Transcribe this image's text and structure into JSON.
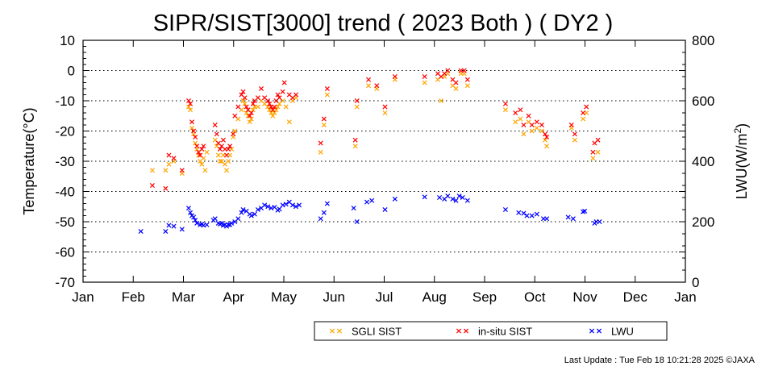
{
  "chart_data": {
    "type": "scatter",
    "title": "SIPR/SIST[3000] trend ( 2023 Both ) ( DY2 )",
    "ylabel": "Temperature(°C)",
    "y2label_main": "LWU(W/m",
    "y2label_sup": "2",
    "y2label_end": ")",
    "ylim": [
      -70,
      10
    ],
    "y2lim": [
      0,
      800
    ],
    "y_ticks": [
      "10",
      "0",
      "-10",
      "-20",
      "-30",
      "-40",
      "-50",
      "-60",
      "-70"
    ],
    "y2_ticks": [
      "800",
      "600",
      "400",
      "200",
      "0"
    ],
    "x_ticks": [
      "Jan",
      "Feb",
      "Mar",
      "Apr",
      "May",
      "Jun",
      "Jul",
      "Aug",
      "Sep",
      "Oct",
      "Nov",
      "Dec",
      "Jan"
    ],
    "grid": "horizontal dotted",
    "legend_position": "bottom-right",
    "series": [
      {
        "name": "SGLI SIST",
        "color": "#ffa500",
        "axis": "left",
        "marker": "x",
        "points": [
          [
            "2023-02-12",
            -33
          ],
          [
            "2023-02-20",
            -33
          ],
          [
            "2023-02-22",
            -31
          ],
          [
            "2023-02-25",
            -30
          ],
          [
            "2023-03-02",
            -34
          ],
          [
            "2023-03-06",
            -12
          ],
          [
            "2023-03-07",
            -13
          ],
          [
            "2023-03-08",
            -19
          ],
          [
            "2023-03-09",
            -21
          ],
          [
            "2023-03-10",
            -24
          ],
          [
            "2023-03-11",
            -26
          ],
          [
            "2023-03-12",
            -28
          ],
          [
            "2023-03-13",
            -30
          ],
          [
            "2023-03-14",
            -31
          ],
          [
            "2023-03-15",
            -29
          ],
          [
            "2023-03-16",
            -33
          ],
          [
            "2023-03-17",
            -27
          ],
          [
            "2023-03-22",
            -23
          ],
          [
            "2023-03-23",
            -25
          ],
          [
            "2023-03-24",
            -28
          ],
          [
            "2023-03-25",
            -30
          ],
          [
            "2023-03-26",
            -30
          ],
          [
            "2023-03-27",
            -28
          ],
          [
            "2023-03-28",
            -31
          ],
          [
            "2023-03-29",
            -33
          ],
          [
            "2023-03-30",
            -30
          ],
          [
            "2023-03-31",
            -28
          ],
          [
            "2023-04-01",
            -26
          ],
          [
            "2023-04-02",
            -22
          ],
          [
            "2023-04-03",
            -20
          ],
          [
            "2023-04-05",
            -16
          ],
          [
            "2023-04-07",
            -13
          ],
          [
            "2023-04-08",
            -10
          ],
          [
            "2023-04-09",
            -11
          ],
          [
            "2023-04-10",
            -14
          ],
          [
            "2023-04-11",
            -15
          ],
          [
            "2023-04-12",
            -17
          ],
          [
            "2023-04-13",
            -16
          ],
          [
            "2023-04-14",
            -13
          ],
          [
            "2023-04-15",
            -12
          ],
          [
            "2023-04-17",
            -12
          ],
          [
            "2023-04-19",
            -10
          ],
          [
            "2023-04-21",
            -11
          ],
          [
            "2023-04-23",
            -12
          ],
          [
            "2023-04-24",
            -13
          ],
          [
            "2023-04-25",
            -14
          ],
          [
            "2023-04-26",
            -15
          ],
          [
            "2023-04-27",
            -14
          ],
          [
            "2023-04-28",
            -13
          ],
          [
            "2023-04-29",
            -12
          ],
          [
            "2023-04-30",
            -11
          ],
          [
            "2023-05-02",
            -10
          ],
          [
            "2023-05-04",
            -12
          ],
          [
            "2023-05-06",
            -17
          ],
          [
            "2023-05-08",
            -10
          ],
          [
            "2023-05-10",
            -9
          ],
          [
            "2023-05-25",
            -27
          ],
          [
            "2023-05-27",
            -18
          ],
          [
            "2023-05-29",
            -8
          ],
          [
            "2023-06-15",
            -25
          ],
          [
            "2023-06-16",
            -12
          ],
          [
            "2023-06-23",
            -5
          ],
          [
            "2023-06-28",
            -6
          ],
          [
            "2023-07-03",
            -14
          ],
          [
            "2023-07-09",
            -3
          ],
          [
            "2023-07-27",
            -4
          ],
          [
            "2023-08-04",
            -3
          ],
          [
            "2023-08-06",
            -10
          ],
          [
            "2023-08-08",
            -2
          ],
          [
            "2023-08-10",
            -1
          ],
          [
            "2023-08-13",
            -5
          ],
          [
            "2023-08-15",
            -6
          ],
          [
            "2023-08-18",
            -1
          ],
          [
            "2023-08-20",
            -1
          ],
          [
            "2023-08-22",
            -5
          ],
          [
            "2023-09-14",
            -13
          ],
          [
            "2023-09-20",
            -17
          ],
          [
            "2023-09-23",
            -16
          ],
          [
            "2023-09-25",
            -21
          ],
          [
            "2023-09-28",
            -17
          ],
          [
            "2023-09-30",
            -20
          ],
          [
            "2023-10-03",
            -19
          ],
          [
            "2023-10-06",
            -20
          ],
          [
            "2023-10-08",
            -23
          ],
          [
            "2023-10-09",
            -25
          ],
          [
            "2023-10-24",
            -19
          ],
          [
            "2023-10-26",
            -23
          ],
          [
            "2023-10-31",
            -16
          ],
          [
            "2023-11-02",
            -14
          ],
          [
            "2023-11-06",
            -29
          ],
          [
            "2023-11-09",
            -27
          ]
        ]
      },
      {
        "name": "in-situ SIST",
        "color": "#ff0000",
        "axis": "left",
        "marker": "x",
        "points": [
          [
            "2023-02-12",
            -38
          ],
          [
            "2023-02-20",
            -39
          ],
          [
            "2023-02-22",
            -28
          ],
          [
            "2023-02-25",
            -29
          ],
          [
            "2023-03-02",
            -33
          ],
          [
            "2023-03-06",
            -10
          ],
          [
            "2023-03-07",
            -11
          ],
          [
            "2023-03-08",
            -17
          ],
          [
            "2023-03-09",
            -20
          ],
          [
            "2023-03-10",
            -22
          ],
          [
            "2023-03-11",
            -25
          ],
          [
            "2023-03-12",
            -27
          ],
          [
            "2023-03-13",
            -28
          ],
          [
            "2023-03-14",
            -26
          ],
          [
            "2023-03-15",
            -25
          ],
          [
            "2023-03-22",
            -18
          ],
          [
            "2023-03-23",
            -21
          ],
          [
            "2023-03-24",
            -24
          ],
          [
            "2023-03-25",
            -26
          ],
          [
            "2023-03-26",
            -25
          ],
          [
            "2023-03-27",
            -23
          ],
          [
            "2023-03-28",
            -26
          ],
          [
            "2023-03-29",
            -28
          ],
          [
            "2023-03-30",
            -26
          ],
          [
            "2023-03-31",
            -25
          ],
          [
            "2023-04-02",
            -21
          ],
          [
            "2023-04-03",
            -15
          ],
          [
            "2023-04-05",
            -12
          ],
          [
            "2023-04-07",
            -8
          ],
          [
            "2023-04-08",
            -7
          ],
          [
            "2023-04-09",
            -9
          ],
          [
            "2023-04-10",
            -12
          ],
          [
            "2023-04-11",
            -13
          ],
          [
            "2023-04-12",
            -15
          ],
          [
            "2023-04-13",
            -14
          ],
          [
            "2023-04-14",
            -11
          ],
          [
            "2023-04-15",
            -10
          ],
          [
            "2023-04-17",
            -9
          ],
          [
            "2023-04-19",
            -6
          ],
          [
            "2023-04-21",
            -9
          ],
          [
            "2023-04-23",
            -10
          ],
          [
            "2023-04-24",
            -11
          ],
          [
            "2023-04-25",
            -12
          ],
          [
            "2023-04-26",
            -13
          ],
          [
            "2023-04-27",
            -12
          ],
          [
            "2023-04-28",
            -10
          ],
          [
            "2023-04-29",
            -8
          ],
          [
            "2023-04-30",
            -9
          ],
          [
            "2023-05-02",
            -7
          ],
          [
            "2023-05-03",
            -4
          ],
          [
            "2023-05-06",
            -8
          ],
          [
            "2023-05-08",
            -9
          ],
          [
            "2023-05-10",
            -8
          ],
          [
            "2023-05-25",
            -24
          ],
          [
            "2023-05-27",
            -16
          ],
          [
            "2023-05-29",
            -6
          ],
          [
            "2023-06-15",
            -23
          ],
          [
            "2023-06-16",
            -10
          ],
          [
            "2023-06-23",
            -3
          ],
          [
            "2023-06-28",
            -5
          ],
          [
            "2023-07-03",
            -12
          ],
          [
            "2023-07-09",
            -2
          ],
          [
            "2023-07-27",
            -2
          ],
          [
            "2023-08-04",
            -1
          ],
          [
            "2023-08-06",
            -2
          ],
          [
            "2023-08-08",
            -1
          ],
          [
            "2023-08-10",
            0
          ],
          [
            "2023-08-13",
            -3
          ],
          [
            "2023-08-15",
            -4
          ],
          [
            "2023-08-18",
            0
          ],
          [
            "2023-08-20",
            0
          ],
          [
            "2023-08-22",
            -3
          ],
          [
            "2023-09-14",
            -11
          ],
          [
            "2023-09-20",
            -14
          ],
          [
            "2023-09-23",
            -13
          ],
          [
            "2023-09-25",
            -18
          ],
          [
            "2023-09-28",
            -15
          ],
          [
            "2023-09-30",
            -18
          ],
          [
            "2023-10-03",
            -17
          ],
          [
            "2023-10-06",
            -18
          ],
          [
            "2023-10-08",
            -21
          ],
          [
            "2023-10-09",
            -22
          ],
          [
            "2023-10-24",
            -18
          ],
          [
            "2023-10-26",
            -21
          ],
          [
            "2023-10-31",
            -14
          ],
          [
            "2023-11-02",
            -12
          ],
          [
            "2023-11-06",
            -27
          ],
          [
            "2023-11-07",
            -24
          ],
          [
            "2023-11-09",
            -23
          ]
        ]
      },
      {
        "name": "LWU",
        "color": "#0000ff",
        "axis": "right",
        "marker": "x",
        "points": [
          [
            "2023-02-05",
            168
          ],
          [
            "2023-02-20",
            168
          ],
          [
            "2023-02-22",
            188
          ],
          [
            "2023-02-25",
            185
          ],
          [
            "2023-03-02",
            175
          ],
          [
            "2023-03-06",
            245
          ],
          [
            "2023-03-07",
            230
          ],
          [
            "2023-03-08",
            220
          ],
          [
            "2023-03-09",
            215
          ],
          [
            "2023-03-10",
            205
          ],
          [
            "2023-03-11",
            195
          ],
          [
            "2023-03-13",
            190
          ],
          [
            "2023-03-14",
            192
          ],
          [
            "2023-03-15",
            188
          ],
          [
            "2023-03-17",
            190
          ],
          [
            "2023-03-21",
            205
          ],
          [
            "2023-03-22",
            210
          ],
          [
            "2023-03-24",
            195
          ],
          [
            "2023-03-25",
            192
          ],
          [
            "2023-03-26",
            195
          ],
          [
            "2023-03-27",
            188
          ],
          [
            "2023-03-28",
            190
          ],
          [
            "2023-03-29",
            185
          ],
          [
            "2023-03-30",
            190
          ],
          [
            "2023-03-31",
            190
          ],
          [
            "2023-04-01",
            195
          ],
          [
            "2023-04-03",
            200
          ],
          [
            "2023-04-05",
            210
          ],
          [
            "2023-04-07",
            230
          ],
          [
            "2023-04-08",
            240
          ],
          [
            "2023-04-10",
            235
          ],
          [
            "2023-04-12",
            225
          ],
          [
            "2023-04-13",
            220
          ],
          [
            "2023-04-15",
            225
          ],
          [
            "2023-04-17",
            240
          ],
          [
            "2023-04-19",
            245
          ],
          [
            "2023-04-21",
            255
          ],
          [
            "2023-04-23",
            250
          ],
          [
            "2023-04-25",
            245
          ],
          [
            "2023-04-27",
            248
          ],
          [
            "2023-04-29",
            238
          ],
          [
            "2023-04-30",
            242
          ],
          [
            "2023-05-02",
            255
          ],
          [
            "2023-05-04",
            258
          ],
          [
            "2023-05-06",
            265
          ],
          [
            "2023-05-08",
            255
          ],
          [
            "2023-05-10",
            250
          ],
          [
            "2023-05-12",
            255
          ],
          [
            "2023-05-25",
            210
          ],
          [
            "2023-05-27",
            230
          ],
          [
            "2023-05-29",
            260
          ],
          [
            "2023-06-14",
            245
          ],
          [
            "2023-06-16",
            200
          ],
          [
            "2023-06-22",
            265
          ],
          [
            "2023-06-25",
            270
          ],
          [
            "2023-07-03",
            240
          ],
          [
            "2023-07-09",
            275
          ],
          [
            "2023-07-27",
            282
          ],
          [
            "2023-08-05",
            280
          ],
          [
            "2023-08-08",
            275
          ],
          [
            "2023-08-10",
            285
          ],
          [
            "2023-08-13",
            275
          ],
          [
            "2023-08-15",
            270
          ],
          [
            "2023-08-17",
            285
          ],
          [
            "2023-08-19",
            280
          ],
          [
            "2023-08-22",
            270
          ],
          [
            "2023-09-14",
            240
          ],
          [
            "2023-09-22",
            230
          ],
          [
            "2023-09-25",
            228
          ],
          [
            "2023-09-27",
            220
          ],
          [
            "2023-09-30",
            220
          ],
          [
            "2023-10-03",
            225
          ],
          [
            "2023-10-07",
            210
          ],
          [
            "2023-10-09",
            210
          ],
          [
            "2023-10-22",
            215
          ],
          [
            "2023-10-25",
            210
          ],
          [
            "2023-10-31",
            233
          ],
          [
            "2023-11-01",
            235
          ],
          [
            "2023-11-07",
            195
          ],
          [
            "2023-11-08",
            200
          ],
          [
            "2023-11-10",
            200
          ]
        ]
      }
    ]
  },
  "footer": {
    "last_update": "Last Update : Tue Feb 18 10:21:28 2025  ©JAXA"
  }
}
